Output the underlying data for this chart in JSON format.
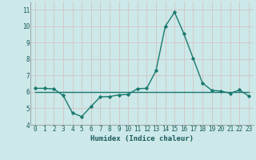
{
  "x": [
    0,
    1,
    2,
    3,
    4,
    5,
    6,
    7,
    8,
    9,
    10,
    11,
    12,
    13,
    14,
    15,
    16,
    17,
    18,
    19,
    20,
    21,
    22,
    23
  ],
  "y_curve": [
    6.22,
    6.22,
    6.18,
    5.78,
    4.72,
    4.5,
    5.12,
    5.7,
    5.72,
    5.82,
    5.85,
    6.2,
    6.22,
    7.3,
    10.0,
    10.85,
    9.55,
    8.05,
    6.55,
    6.1,
    6.05,
    5.92,
    6.12,
    5.75
  ],
  "y_flat": [
    6.02,
    6.02,
    6.02,
    6.02,
    6.02,
    6.02,
    6.02,
    6.02,
    6.02,
    6.02,
    6.02,
    6.02,
    6.02,
    6.02,
    6.02,
    6.02,
    6.02,
    6.02,
    6.02,
    6.02,
    6.02,
    6.02,
    6.02,
    6.02
  ],
  "line_color": "#1a7a6e",
  "background_color": "#cce8e8",
  "grid_color": "#c0c8c8",
  "xlabel": "Humidex (Indice chaleur)",
  "ylim": [
    4.0,
    11.5
  ],
  "xlim": [
    -0.5,
    23.5
  ],
  "yticks": [
    4,
    5,
    6,
    7,
    8,
    9,
    10,
    11
  ],
  "xticks": [
    0,
    1,
    2,
    3,
    4,
    5,
    6,
    7,
    8,
    9,
    10,
    11,
    12,
    13,
    14,
    15,
    16,
    17,
    18,
    19,
    20,
    21,
    22,
    23
  ],
  "tick_fontsize": 5.5,
  "xlabel_fontsize": 6.5
}
